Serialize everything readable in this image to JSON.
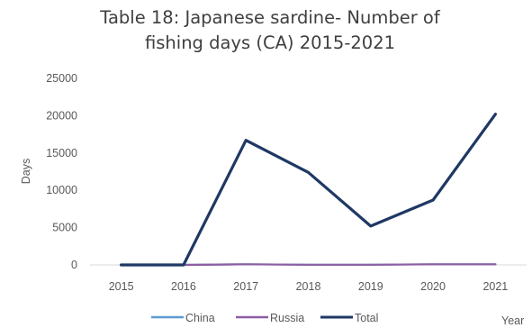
{
  "chart_data": {
    "type": "line",
    "title_line1": "Table 18: Japanese sardine- Number of",
    "title_line2": "fishing days (CA) 2015-2021",
    "xlabel": "Year",
    "ylabel": "Days",
    "x": [
      "2015",
      "2016",
      "2017",
      "2018",
      "2019",
      "2020",
      "2021"
    ],
    "ylim": [
      0,
      25000
    ],
    "yticks": [
      0,
      5000,
      10000,
      15000,
      20000,
      25000
    ],
    "grid": false,
    "legend_position": "bottom",
    "series": [
      {
        "name": "China",
        "color": "#5b9bd5",
        "values": [
          0,
          0,
          80,
          20,
          20,
          80,
          80
        ]
      },
      {
        "name": "Russia",
        "color": "#8e5ea2",
        "values": [
          0,
          0,
          80,
          20,
          20,
          80,
          80
        ]
      },
      {
        "name": "Total",
        "color": "#1f3864",
        "values": [
          0,
          0,
          16700,
          12400,
          5200,
          8700,
          20200
        ]
      }
    ]
  }
}
